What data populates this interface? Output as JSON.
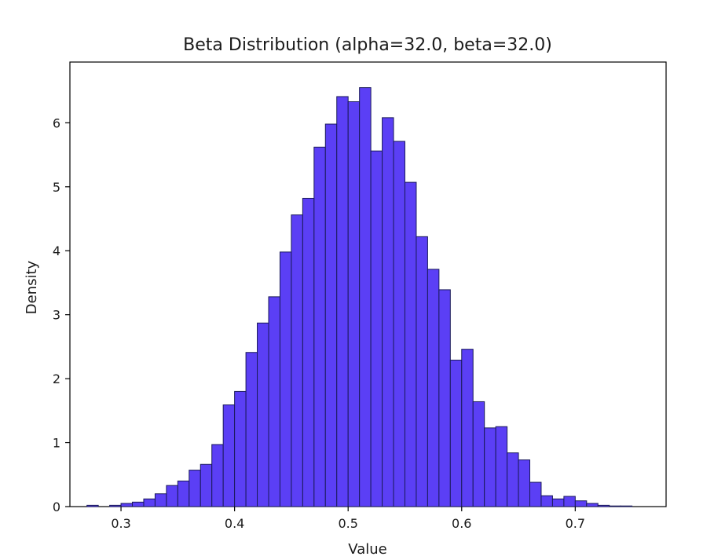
{
  "chart_data": {
    "type": "bar",
    "title": "Beta Distribution (alpha=32.0, beta=32.0)",
    "xlabel": "Value",
    "ylabel": "Density",
    "xlim": [
      0.255,
      0.78
    ],
    "ylim": [
      0,
      6.95
    ],
    "xticks": [
      "0.3",
      "0.4",
      "0.5",
      "0.6",
      "0.7"
    ],
    "xtick_values": [
      0.3,
      0.4,
      0.5,
      0.6,
      0.7
    ],
    "yticks": [
      "0",
      "1",
      "2",
      "3",
      "4",
      "5",
      "6"
    ],
    "ytick_values": [
      0,
      1,
      2,
      3,
      4,
      5,
      6
    ],
    "bar_color": "#5b3ff5",
    "bin_width": 0.01,
    "bin_starts": [
      0.27,
      0.28,
      0.29,
      0.3,
      0.31,
      0.32,
      0.33,
      0.34,
      0.35,
      0.36,
      0.37,
      0.38,
      0.39,
      0.4,
      0.41,
      0.42,
      0.43,
      0.44,
      0.45,
      0.46,
      0.47,
      0.48,
      0.49,
      0.5,
      0.51,
      0.52,
      0.53,
      0.54,
      0.55,
      0.56,
      0.57,
      0.58,
      0.59,
      0.6,
      0.61,
      0.62,
      0.63,
      0.64,
      0.65,
      0.66,
      0.67,
      0.68,
      0.69,
      0.7,
      0.71,
      0.72,
      0.73,
      0.74
    ],
    "values": [
      0.02,
      0.0,
      0.02,
      0.05,
      0.07,
      0.12,
      0.2,
      0.33,
      0.4,
      0.57,
      0.66,
      0.97,
      1.59,
      1.8,
      2.41,
      2.87,
      3.28,
      3.98,
      4.56,
      4.82,
      5.62,
      5.98,
      6.41,
      6.33,
      6.55,
      5.56,
      6.08,
      5.71,
      5.07,
      4.22,
      3.71,
      3.39,
      2.29,
      2.46,
      1.64,
      1.23,
      1.25,
      0.84,
      0.73,
      0.38,
      0.17,
      0.12,
      0.16,
      0.09,
      0.05,
      0.02,
      0.01,
      0.01
    ]
  }
}
